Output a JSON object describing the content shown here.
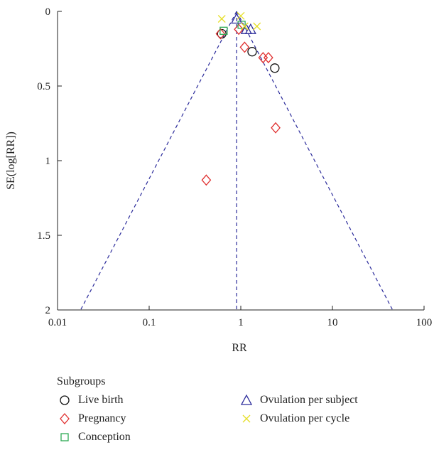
{
  "chart_data": {
    "type": "scatter",
    "title": "",
    "xlabel": "RR",
    "ylabel": "SE(log[RR])",
    "xscale": "log",
    "yaxis_inverted": true,
    "xlim": [
      0.01,
      100
    ],
    "ylim": [
      0,
      2
    ],
    "xticks": [
      "0.01",
      "0.1",
      "1",
      "10",
      "100"
    ],
    "yticks": [
      "0",
      "0.5",
      "1",
      "1.5",
      "2"
    ],
    "pooled_rr": 0.9,
    "funnel_ci_z": 1.96,
    "funnel_line_color": "#2b2b9b",
    "legend_title": "Subgroups",
    "legend_position": "bottom",
    "series": [
      {
        "name": "Live birth",
        "marker": "circle",
        "color": "#111111",
        "points": [
          {
            "x": 0.62,
            "y": 0.15
          },
          {
            "x": 1.33,
            "y": 0.27
          },
          {
            "x": 2.35,
            "y": 0.38
          }
        ]
      },
      {
        "name": "Pregnancy",
        "marker": "diamond",
        "color": "#e03030",
        "points": [
          {
            "x": 0.6,
            "y": 0.15
          },
          {
            "x": 0.95,
            "y": 0.12
          },
          {
            "x": 1.1,
            "y": 0.24
          },
          {
            "x": 1.75,
            "y": 0.31
          },
          {
            "x": 2.0,
            "y": 0.31
          },
          {
            "x": 2.4,
            "y": 0.78
          },
          {
            "x": 0.42,
            "y": 1.13
          }
        ]
      },
      {
        "name": "Conception",
        "marker": "square",
        "color": "#2eaa55",
        "points": [
          {
            "x": 0.65,
            "y": 0.13
          },
          {
            "x": 1.02,
            "y": 0.09
          }
        ]
      },
      {
        "name": "Ovulation per subject",
        "marker": "triangle",
        "color": "#2b2b9b",
        "points": [
          {
            "x": 0.9,
            "y": 0.05
          },
          {
            "x": 1.15,
            "y": 0.12
          },
          {
            "x": 1.28,
            "y": 0.12
          }
        ]
      },
      {
        "name": "Ovulation per cycle",
        "marker": "x",
        "color": "#e6df2a",
        "points": [
          {
            "x": 0.62,
            "y": 0.05
          },
          {
            "x": 1.0,
            "y": 0.03
          },
          {
            "x": 1.5,
            "y": 0.1
          },
          {
            "x": 1.1,
            "y": 0.1
          }
        ]
      }
    ]
  }
}
